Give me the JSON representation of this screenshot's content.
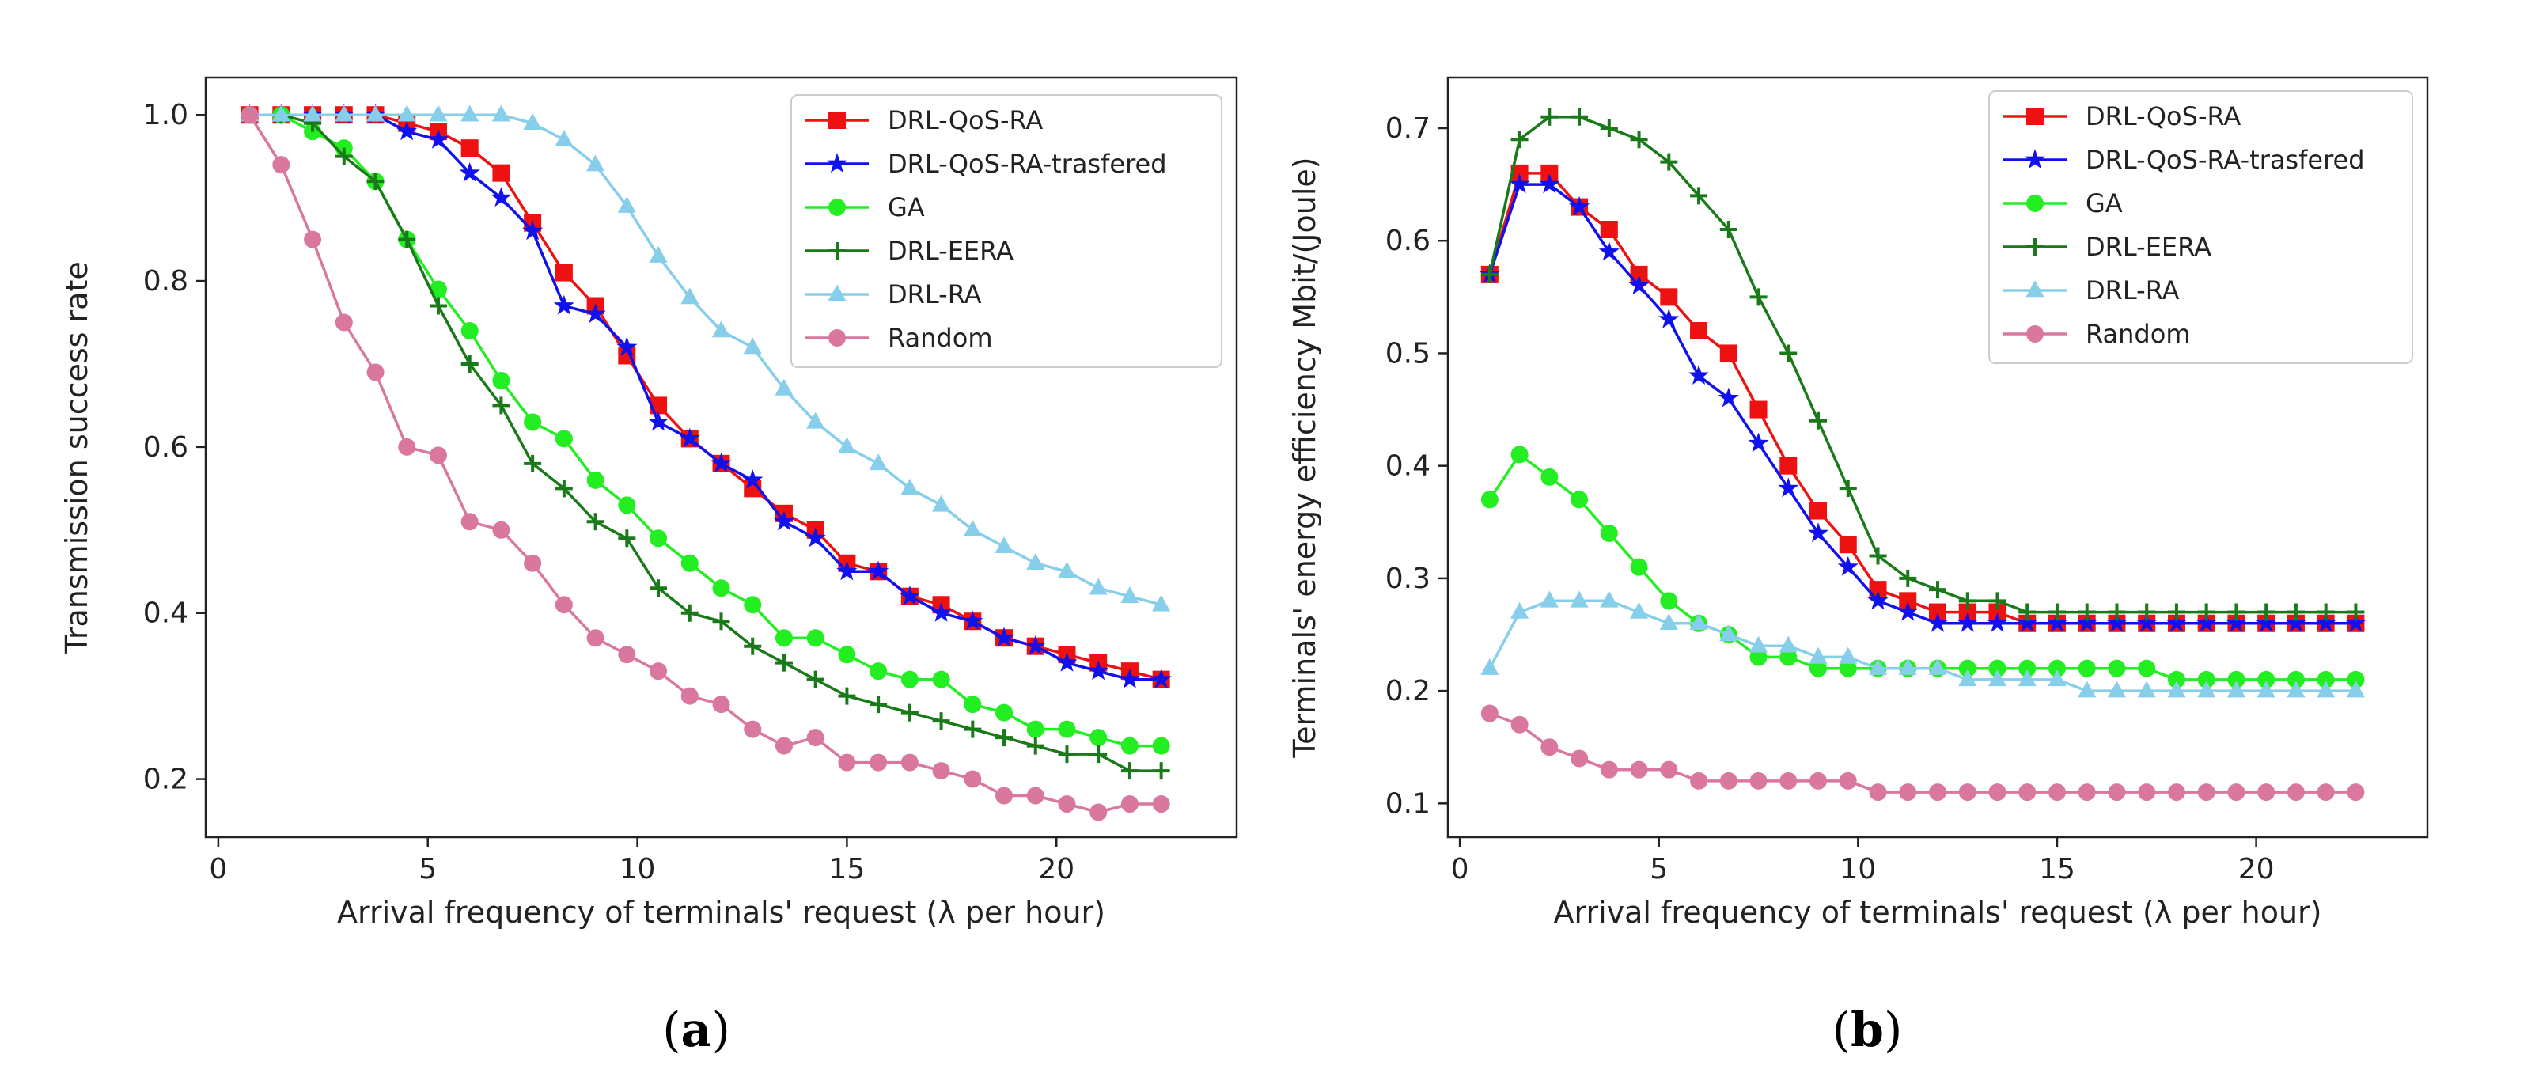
{
  "chart_data": [
    {
      "type": "line",
      "panel_label_open": "(",
      "panel_label_letter": "a",
      "panel_label_close": ")",
      "xlabel": "Arrival frequency  of terminals' request (λ per hour)",
      "ylabel": "Transmission success rate",
      "xlim": [
        -0.3,
        24.3
      ],
      "ylim": [
        0.13,
        1.045
      ],
      "xticks": [
        0,
        5,
        10,
        15,
        20
      ],
      "xtick_labels": [
        "0",
        "5",
        "10",
        "15",
        "20"
      ],
      "yticks": [
        0.2,
        0.4,
        0.6,
        0.8,
        1.0
      ],
      "ytick_labels": [
        "0.2",
        "0.4",
        "0.6",
        "0.8",
        "1.0"
      ],
      "legend_position": "top-right",
      "x": [
        0.75,
        1.5,
        2.25,
        3.0,
        3.75,
        4.5,
        5.25,
        6.0,
        6.75,
        7.5,
        8.25,
        9.0,
        9.75,
        10.5,
        11.25,
        12.0,
        12.75,
        13.5,
        14.25,
        15.0,
        15.75,
        16.5,
        17.25,
        18.0,
        18.75,
        19.5,
        20.25,
        21.0,
        21.75,
        22.5
      ],
      "series": [
        {
          "name": "DRL-QoS-RA",
          "color": "#ee1111",
          "marker": "square",
          "values": [
            1.0,
            1.0,
            1.0,
            1.0,
            1.0,
            0.99,
            0.98,
            0.96,
            0.93,
            0.87,
            0.81,
            0.77,
            0.71,
            0.65,
            0.61,
            0.58,
            0.55,
            0.52,
            0.5,
            0.46,
            0.45,
            0.42,
            0.41,
            0.39,
            0.37,
            0.36,
            0.35,
            0.34,
            0.33,
            0.32
          ]
        },
        {
          "name": "DRL-QoS-RA-trasfered",
          "color": "#1111ee",
          "marker": "star",
          "values": [
            1.0,
            1.0,
            1.0,
            1.0,
            1.0,
            0.98,
            0.97,
            0.93,
            0.9,
            0.86,
            0.77,
            0.76,
            0.72,
            0.63,
            0.61,
            0.58,
            0.56,
            0.51,
            0.49,
            0.45,
            0.45,
            0.42,
            0.4,
            0.39,
            0.37,
            0.36,
            0.34,
            0.33,
            0.32,
            0.32
          ]
        },
        {
          "name": "GA",
          "color": "#22ee22",
          "marker": "circle",
          "values": [
            1.0,
            1.0,
            0.98,
            0.96,
            0.92,
            0.85,
            0.79,
            0.74,
            0.68,
            0.63,
            0.61,
            0.56,
            0.53,
            0.49,
            0.46,
            0.43,
            0.41,
            0.37,
            0.37,
            0.35,
            0.33,
            0.32,
            0.32,
            0.29,
            0.28,
            0.26,
            0.26,
            0.25,
            0.24,
            0.24
          ]
        },
        {
          "name": "DRL-EERA",
          "color": "#1a7a1a",
          "marker": "plus",
          "values": [
            1.0,
            1.0,
            0.99,
            0.95,
            0.92,
            0.85,
            0.77,
            0.7,
            0.65,
            0.58,
            0.55,
            0.51,
            0.49,
            0.43,
            0.4,
            0.39,
            0.36,
            0.34,
            0.32,
            0.3,
            0.29,
            0.28,
            0.27,
            0.26,
            0.25,
            0.24,
            0.23,
            0.23,
            0.21,
            0.21
          ]
        },
        {
          "name": "DRL-RA",
          "color": "#87ceeb",
          "marker": "triangle",
          "values": [
            1.0,
            1.0,
            1.0,
            1.0,
            1.0,
            1.0,
            1.0,
            1.0,
            1.0,
            0.99,
            0.97,
            0.94,
            0.89,
            0.83,
            0.78,
            0.74,
            0.72,
            0.67,
            0.63,
            0.6,
            0.58,
            0.55,
            0.53,
            0.5,
            0.48,
            0.46,
            0.45,
            0.43,
            0.42,
            0.41
          ]
        },
        {
          "name": "Random",
          "color": "#d9779e",
          "marker": "circle",
          "values": [
            1.0,
            0.94,
            0.85,
            0.75,
            0.69,
            0.6,
            0.59,
            0.51,
            0.5,
            0.46,
            0.41,
            0.37,
            0.35,
            0.33,
            0.3,
            0.29,
            0.26,
            0.24,
            0.25,
            0.22,
            0.22,
            0.22,
            0.21,
            0.2,
            0.18,
            0.18,
            0.17,
            0.16,
            0.17,
            0.17
          ]
        }
      ]
    },
    {
      "type": "line",
      "panel_label_open": "(",
      "panel_label_letter": "b",
      "panel_label_close": ")",
      "xlabel": "Arrival frequency  of terminals' request (λ per hour)",
      "ylabel": "Terminals' energy efficiency Mbit/(Joule)",
      "xlim": [
        -0.3,
        24.3
      ],
      "ylim": [
        0.07,
        0.745
      ],
      "xticks": [
        0,
        5,
        10,
        15,
        20
      ],
      "xtick_labels": [
        "0",
        "5",
        "10",
        "15",
        "20"
      ],
      "yticks": [
        0.1,
        0.2,
        0.3,
        0.4,
        0.5,
        0.6,
        0.7
      ],
      "ytick_labels": [
        "0.1",
        "0.2",
        "0.3",
        "0.4",
        "0.5",
        "0.6",
        "0.7"
      ],
      "legend_position": "top-right",
      "x": [
        0.75,
        1.5,
        2.25,
        3.0,
        3.75,
        4.5,
        5.25,
        6.0,
        6.75,
        7.5,
        8.25,
        9.0,
        9.75,
        10.5,
        11.25,
        12.0,
        12.75,
        13.5,
        14.25,
        15.0,
        15.75,
        16.5,
        17.25,
        18.0,
        18.75,
        19.5,
        20.25,
        21.0,
        21.75,
        22.5
      ],
      "series": [
        {
          "name": "DRL-QoS-RA",
          "color": "#ee1111",
          "marker": "square",
          "values": [
            0.57,
            0.66,
            0.66,
            0.63,
            0.61,
            0.57,
            0.55,
            0.52,
            0.5,
            0.45,
            0.4,
            0.36,
            0.33,
            0.29,
            0.28,
            0.27,
            0.27,
            0.27,
            0.26,
            0.26,
            0.26,
            0.26,
            0.26,
            0.26,
            0.26,
            0.26,
            0.26,
            0.26,
            0.26,
            0.26
          ]
        },
        {
          "name": "DRL-QoS-RA-trasfered",
          "color": "#1111ee",
          "marker": "star",
          "values": [
            0.57,
            0.65,
            0.65,
            0.63,
            0.59,
            0.56,
            0.53,
            0.48,
            0.46,
            0.42,
            0.38,
            0.34,
            0.31,
            0.28,
            0.27,
            0.26,
            0.26,
            0.26,
            0.26,
            0.26,
            0.26,
            0.26,
            0.26,
            0.26,
            0.26,
            0.26,
            0.26,
            0.26,
            0.26,
            0.26
          ]
        },
        {
          "name": "GA",
          "color": "#22ee22",
          "marker": "circle",
          "values": [
            0.37,
            0.41,
            0.39,
            0.37,
            0.34,
            0.31,
            0.28,
            0.26,
            0.25,
            0.23,
            0.23,
            0.22,
            0.22,
            0.22,
            0.22,
            0.22,
            0.22,
            0.22,
            0.22,
            0.22,
            0.22,
            0.22,
            0.22,
            0.21,
            0.21,
            0.21,
            0.21,
            0.21,
            0.21,
            0.21
          ]
        },
        {
          "name": "DRL-EERA",
          "color": "#1a7a1a",
          "marker": "plus",
          "values": [
            0.57,
            0.69,
            0.71,
            0.71,
            0.7,
            0.69,
            0.67,
            0.64,
            0.61,
            0.55,
            0.5,
            0.44,
            0.38,
            0.32,
            0.3,
            0.29,
            0.28,
            0.28,
            0.27,
            0.27,
            0.27,
            0.27,
            0.27,
            0.27,
            0.27,
            0.27,
            0.27,
            0.27,
            0.27,
            0.27
          ]
        },
        {
          "name": "DRL-RA",
          "color": "#87ceeb",
          "marker": "triangle",
          "values": [
            0.22,
            0.27,
            0.28,
            0.28,
            0.28,
            0.27,
            0.26,
            0.26,
            0.25,
            0.24,
            0.24,
            0.23,
            0.23,
            0.22,
            0.22,
            0.22,
            0.21,
            0.21,
            0.21,
            0.21,
            0.2,
            0.2,
            0.2,
            0.2,
            0.2,
            0.2,
            0.2,
            0.2,
            0.2,
            0.2
          ]
        },
        {
          "name": "Random",
          "color": "#d9779e",
          "marker": "circle",
          "values": [
            0.18,
            0.17,
            0.15,
            0.14,
            0.13,
            0.13,
            0.13,
            0.12,
            0.12,
            0.12,
            0.12,
            0.12,
            0.12,
            0.11,
            0.11,
            0.11,
            0.11,
            0.11,
            0.11,
            0.11,
            0.11,
            0.11,
            0.11,
            0.11,
            0.11,
            0.11,
            0.11,
            0.11,
            0.11,
            0.11
          ]
        }
      ]
    }
  ]
}
